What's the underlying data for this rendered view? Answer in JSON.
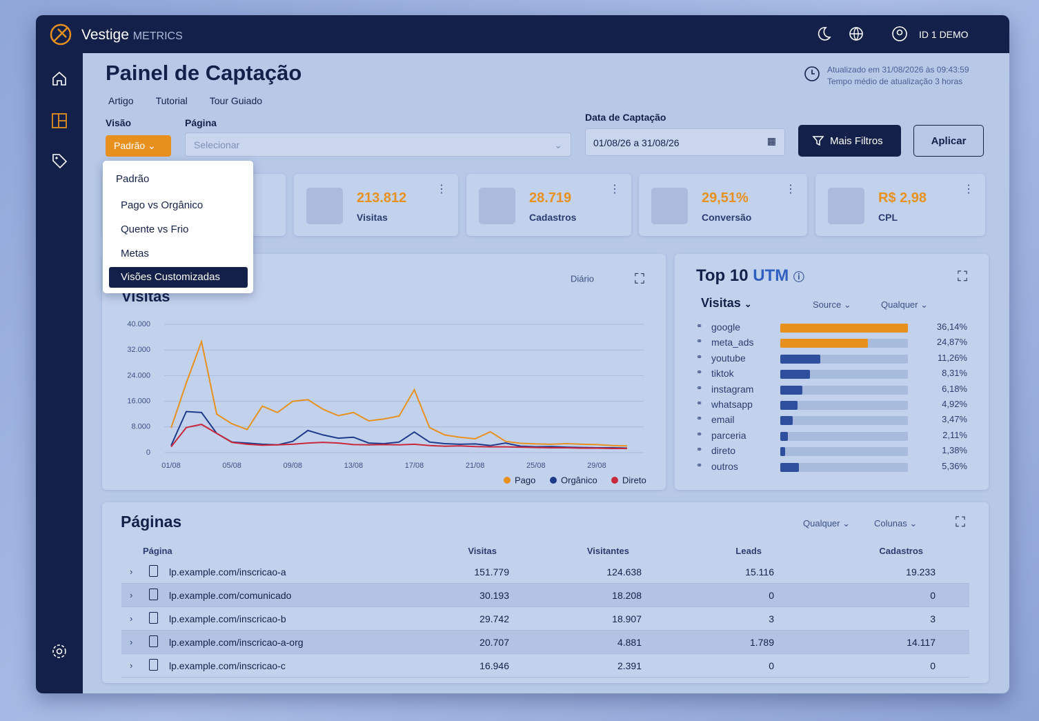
{
  "brand": {
    "name": "Vestige",
    "sub": "METRICS"
  },
  "user": "ID 1 DEMO",
  "header": {
    "title": "Painel de Captação",
    "links": [
      "Artigo",
      "Tutorial",
      "Tour Guiado"
    ],
    "updated": "Atualizado em 31/08/2026 às 09:43:59",
    "average": "Tempo médio de atualização 3 horas"
  },
  "filters": {
    "visao_label": "Visão",
    "visao_value": "Padrão",
    "pagina_label": "Página",
    "pagina_placeholder": "Selecionar",
    "date_label": "Data de Captação",
    "date_value": "01/08/26 a 31/08/26",
    "more": "Mais Filtros",
    "apply": "Aplicar"
  },
  "dropdown": [
    "Padrão",
    "Pago vs Orgânico",
    "Quente vs Frio",
    "Metas",
    "Visões Customizadas"
  ],
  "kpis": [
    {
      "value": "213.812",
      "label": "Visitas"
    },
    {
      "value": "28.719",
      "label": "Cadastros"
    },
    {
      "value": "29,51%",
      "label": "Conversão"
    },
    {
      "value": "R$ 2,98",
      "label": "CPL"
    }
  ],
  "chart_data": {
    "type": "line",
    "title": "Visitas",
    "period": "Diário",
    "categories": [
      "01/08",
      null,
      null,
      null,
      "05/08",
      null,
      null,
      null,
      "09/08",
      null,
      null,
      null,
      "13/08",
      null,
      null,
      null,
      "17/08",
      null,
      null,
      null,
      "21/08",
      null,
      null,
      null,
      "25/08",
      null,
      null,
      null,
      "29/08",
      null,
      null
    ],
    "series": [
      {
        "name": "Pago",
        "color": "#e8901e",
        "values": [
          7700,
          21700,
          34600,
          12000,
          9000,
          7200,
          14500,
          12500,
          16000,
          16500,
          13500,
          11500,
          12500,
          9900,
          10500,
          11400,
          19600,
          7800,
          5500,
          4800,
          4300,
          6500,
          3500,
          2900,
          2700,
          2600,
          2800,
          2600,
          2500,
          2200,
          2100
        ]
      },
      {
        "name": "Orgânico",
        "color": "#1e3a8a",
        "values": [
          2200,
          12800,
          12500,
          6000,
          3300,
          3000,
          2600,
          2400,
          3500,
          6900,
          5500,
          4500,
          4800,
          3000,
          2800,
          3300,
          6400,
          3300,
          2800,
          2600,
          2700,
          2200,
          3000,
          2000,
          1800,
          1900,
          1700,
          1600,
          1500,
          1500,
          1400
        ]
      },
      {
        "name": "Direto",
        "color": "#c8283c",
        "values": [
          1800,
          7800,
          8800,
          6000,
          3200,
          2600,
          2300,
          2400,
          2600,
          3000,
          3200,
          3000,
          2500,
          2400,
          2500,
          2400,
          2600,
          2200,
          2000,
          2100,
          1900,
          1800,
          1800,
          1700,
          1600,
          1500,
          1500,
          1400,
          1400,
          1300,
          1300
        ]
      }
    ],
    "ylim": [
      0,
      40000
    ],
    "yticks": [
      0,
      {
        "value": 8000,
        "label": "8.000"
      },
      {
        "value": 16000,
        "label": "16.000"
      },
      {
        "value": 24000,
        "label": "24.000"
      },
      {
        "value": 32000,
        "label": "32.000"
      },
      {
        "value": 40000,
        "label": "40.000"
      }
    ],
    "grid": true
  },
  "utm": {
    "title": "Top 10",
    "title_accent": "UTM",
    "metric": "Visitas",
    "dimension": "Source",
    "filter": "Qualquer",
    "names": [
      "google",
      "meta_ads",
      "youtube",
      "tiktok",
      "instagram",
      "whatsapp",
      "email",
      "parceria",
      "direto",
      "outros"
    ],
    "values": [
      36.14,
      24.87,
      11.26,
      8.31,
      6.18,
      4.92,
      3.47,
      2.11,
      1.38,
      5.36
    ],
    "value_labels": [
      "36,14%",
      "24,87%",
      "11,26%",
      "8,31%",
      "6,18%",
      "4,92%",
      "3,47%",
      "2,11%",
      "1,38%",
      "5,36%"
    ],
    "colors": [
      "#e8901e",
      "#e8901e",
      "#2f4f9e",
      "#2f4f9e",
      "#2f4f9e",
      "#2f4f9e",
      "#2f4f9e",
      "#2f4f9e",
      "#2f4f9e",
      "#2f4f9e"
    ]
  },
  "table": {
    "title": "Páginas",
    "filter": "Qualquer",
    "columns_button": "Colunas",
    "columns": [
      "Página",
      "Visitas",
      "Visitantes",
      "Leads",
      "Cadastros"
    ],
    "rows": [
      [
        "lp.example.com/inscricao-a",
        "151.779",
        "124.638",
        "15.116",
        "19.233"
      ],
      [
        "lp.example.com/comunicado",
        "30.193",
        "18.208",
        "0",
        "0"
      ],
      [
        "lp.example.com/inscricao-b",
        "29.742",
        "18.907",
        "3",
        "3"
      ],
      [
        "lp.example.com/inscricao-a-org",
        "20.707",
        "4.881",
        "1.789",
        "14.117"
      ],
      [
        "lp.example.com/inscricao-c",
        "16.946",
        "2.391",
        "0",
        "0"
      ]
    ]
  }
}
